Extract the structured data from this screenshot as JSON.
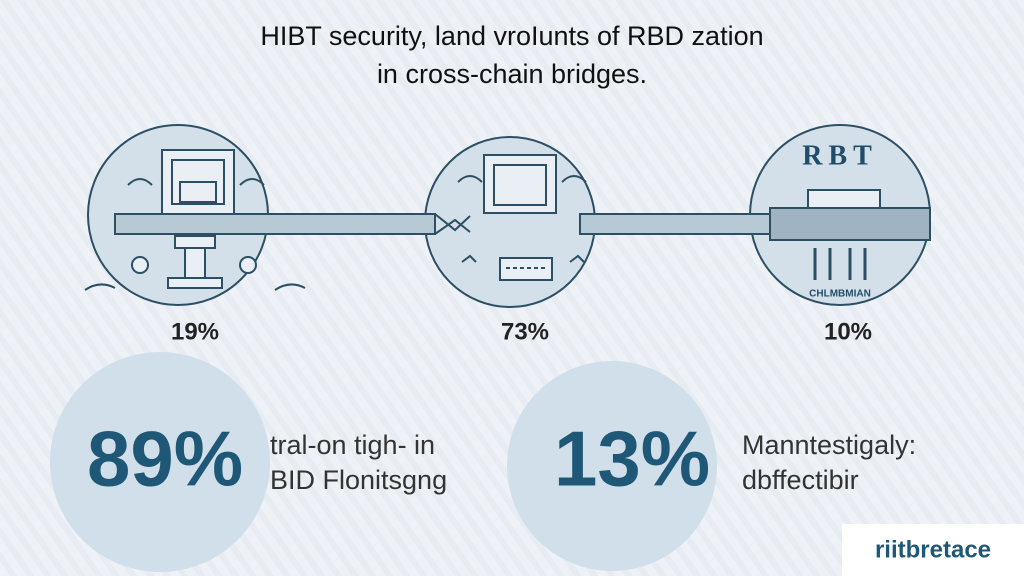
{
  "title": {
    "line1": "HIBT security, land vroIunts of RBD zation",
    "line2": "in cross-chain bridges."
  },
  "stages": [
    {
      "percent": "19%"
    },
    {
      "percent": "73%"
    },
    {
      "percent": "10%",
      "sign": "RBT",
      "caption": "CHLMBMIAN"
    }
  ],
  "highlights": [
    {
      "percent": "89%",
      "line1": "tral-on tigh- in",
      "line2": "BID Flonitsgng"
    },
    {
      "percent": "13%",
      "line1": "Manntestigaly:",
      "line2": "dbffectibir"
    }
  ],
  "logo": "riitbretace"
}
